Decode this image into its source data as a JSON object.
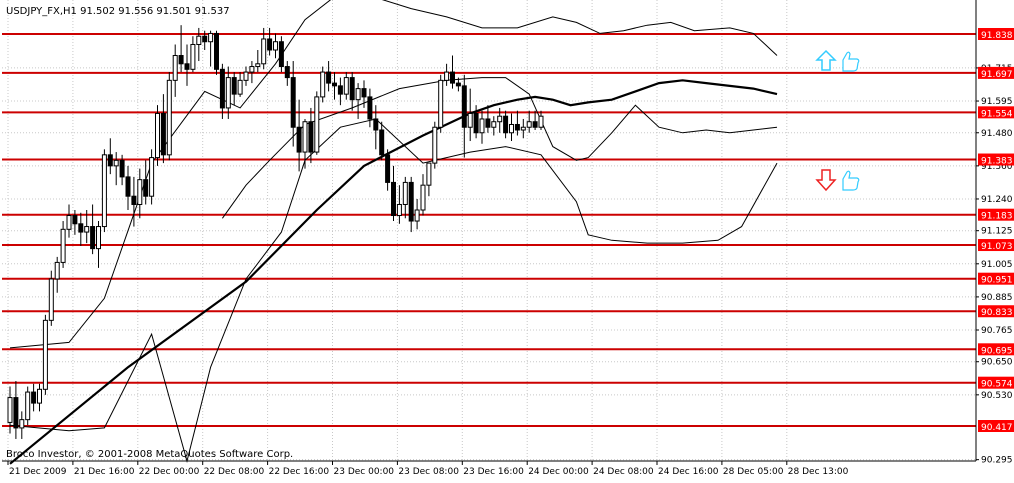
{
  "header": {
    "symbol_text": "USDJPY_FX,H1  91.502 91.556 91.501 91.537"
  },
  "footer": {
    "copyright": "Broco Investor, © 2001-2008 MetaQuotes Software Corp."
  },
  "colors": {
    "background": "#ffffff",
    "grid": "#c8c8c8",
    "level_line": "#cc0000",
    "level_tag_bg": "#ff0000",
    "level_tag_text": "#ffffff",
    "candle": "#000000",
    "bands": "#000000",
    "moving_average": "#000000",
    "up_arrow": "#33ccff",
    "down_arrow": "#ee2222",
    "thumb": "#33ccff"
  },
  "icons": {
    "up_signal": "up-arrow-icon",
    "down_signal": "down-arrow-icon",
    "thumb": "thumb-up-icon"
  },
  "chart_data": {
    "type": "candlestick",
    "symbol": "USDJPY_FX",
    "timeframe": "H1",
    "last_quote": {
      "open": 91.502,
      "high": 91.556,
      "low": 91.501,
      "close": 91.537
    },
    "ylim": [
      90.295,
      91.94
    ],
    "grid": true,
    "y_ticks": [
      "91.715",
      "91.595",
      "91.480",
      "91.360",
      "91.240",
      "91.125",
      "91.005",
      "90.885",
      "90.765",
      "90.650",
      "90.530",
      "90.295"
    ],
    "x_ticks": [
      "21 Dec 2009",
      "21 Dec 16:00",
      "22 Dec 00:00",
      "22 Dec 08:00",
      "22 Dec 16:00",
      "23 Dec 00:00",
      "23 Dec 08:00",
      "23 Dec 16:00",
      "24 Dec 00:00",
      "24 Dec 08:00",
      "24 Dec 16:00",
      "28 Dec 05:00",
      "28 Dec 13:00"
    ],
    "levels": [
      "91.838",
      "91.697",
      "91.554",
      "91.383",
      "91.183",
      "91.073",
      "90.951",
      "90.833",
      "90.695",
      "90.574",
      "90.417"
    ],
    "candles": [
      [
        90.43,
        90.56,
        90.39,
        90.52
      ],
      [
        90.52,
        90.58,
        90.37,
        90.41
      ],
      [
        90.41,
        90.47,
        90.37,
        90.44
      ],
      [
        90.44,
        90.56,
        90.42,
        90.54
      ],
      [
        90.54,
        90.57,
        90.47,
        90.5
      ],
      [
        90.5,
        90.57,
        90.47,
        90.55
      ],
      [
        90.55,
        90.82,
        90.53,
        90.8
      ],
      [
        90.8,
        90.98,
        90.78,
        90.95
      ],
      [
        90.95,
        91.03,
        90.9,
        91.01
      ],
      [
        91.01,
        91.16,
        90.99,
        91.13
      ],
      [
        91.13,
        91.22,
        91.1,
        91.18
      ],
      [
        91.18,
        91.2,
        91.11,
        91.15
      ],
      [
        91.15,
        91.19,
        91.07,
        91.12
      ],
      [
        91.12,
        91.2,
        91.08,
        91.14
      ],
      [
        91.14,
        91.22,
        91.04,
        91.06
      ],
      [
        91.06,
        91.16,
        90.99,
        91.14
      ],
      [
        91.14,
        91.42,
        91.12,
        91.4
      ],
      [
        91.4,
        91.46,
        91.33,
        91.36
      ],
      [
        91.36,
        91.41,
        91.29,
        91.38
      ],
      [
        91.38,
        91.4,
        91.29,
        91.32
      ],
      [
        91.32,
        91.36,
        91.2,
        91.25
      ],
      [
        91.25,
        91.32,
        91.14,
        91.22
      ],
      [
        91.22,
        91.35,
        91.17,
        91.31
      ],
      [
        91.31,
        91.38,
        91.22,
        91.25
      ],
      [
        91.25,
        91.42,
        91.22,
        91.39
      ],
      [
        91.39,
        91.58,
        91.36,
        91.55
      ],
      [
        91.55,
        91.62,
        91.37,
        91.4
      ],
      [
        91.4,
        91.7,
        91.38,
        91.67
      ],
      [
        91.67,
        91.8,
        91.61,
        91.76
      ],
      [
        91.76,
        91.87,
        91.7,
        91.73
      ],
      [
        91.73,
        91.8,
        91.65,
        91.71
      ],
      [
        91.71,
        91.83,
        91.7,
        91.8
      ],
      [
        91.8,
        91.86,
        91.74,
        91.83
      ],
      [
        91.83,
        91.85,
        91.78,
        91.81
      ],
      [
        91.81,
        91.85,
        91.72,
        91.84
      ],
      [
        91.84,
        91.85,
        91.69,
        91.71
      ],
      [
        91.71,
        91.73,
        91.53,
        91.57
      ],
      [
        91.57,
        91.72,
        91.53,
        91.68
      ],
      [
        91.68,
        91.7,
        91.58,
        91.62
      ],
      [
        91.62,
        91.7,
        91.61,
        91.67
      ],
      [
        91.67,
        91.72,
        91.65,
        91.7
      ],
      [
        91.7,
        91.74,
        91.66,
        91.72
      ],
      [
        91.72,
        91.78,
        91.7,
        91.73
      ],
      [
        91.73,
        91.86,
        91.71,
        91.82
      ],
      [
        91.82,
        91.86,
        91.76,
        91.78
      ],
      [
        91.78,
        91.84,
        91.75,
        91.81
      ],
      [
        91.81,
        91.83,
        91.7,
        91.72
      ],
      [
        91.72,
        91.74,
        91.65,
        91.68
      ],
      [
        91.68,
        91.74,
        91.43,
        91.5
      ],
      [
        91.5,
        91.6,
        91.34,
        91.41
      ],
      [
        91.41,
        91.53,
        91.35,
        91.52
      ],
      [
        91.52,
        91.57,
        91.37,
        91.41
      ],
      [
        91.41,
        91.63,
        91.4,
        91.61
      ],
      [
        91.61,
        91.72,
        91.59,
        91.7
      ],
      [
        91.7,
        91.74,
        91.63,
        91.66
      ],
      [
        91.66,
        91.7,
        91.6,
        91.65
      ],
      [
        91.65,
        91.68,
        91.58,
        91.62
      ],
      [
        91.62,
        91.7,
        91.6,
        91.68
      ],
      [
        91.68,
        91.7,
        91.56,
        91.6
      ],
      [
        91.6,
        91.66,
        91.53,
        91.64
      ],
      [
        91.64,
        91.67,
        91.57,
        91.61
      ],
      [
        91.61,
        91.64,
        91.5,
        91.53
      ],
      [
        91.53,
        91.58,
        91.42,
        91.49
      ],
      [
        91.49,
        91.52,
        91.38,
        91.4
      ],
      [
        91.4,
        91.42,
        91.27,
        91.3
      ],
      [
        91.3,
        91.36,
        91.16,
        91.18
      ],
      [
        91.18,
        91.29,
        91.15,
        91.22
      ],
      [
        91.22,
        91.32,
        91.17,
        91.3
      ],
      [
        91.3,
        91.32,
        91.12,
        91.16
      ],
      [
        91.16,
        91.24,
        91.13,
        91.2
      ],
      [
        91.2,
        91.33,
        91.18,
        91.29
      ],
      [
        91.29,
        91.36,
        91.25,
        91.37
      ],
      [
        91.37,
        91.52,
        91.35,
        91.5
      ],
      [
        91.5,
        91.69,
        91.48,
        91.67
      ],
      [
        91.67,
        91.73,
        91.65,
        91.7
      ],
      [
        91.7,
        91.76,
        91.64,
        91.66
      ],
      [
        91.66,
        91.68,
        91.63,
        91.65
      ],
      [
        91.65,
        91.69,
        91.39,
        91.5
      ],
      [
        91.5,
        91.64,
        91.45,
        91.55
      ],
      [
        91.55,
        91.58,
        91.46,
        91.48
      ],
      [
        91.48,
        91.56,
        91.44,
        91.53
      ],
      [
        91.53,
        91.58,
        91.48,
        91.5
      ],
      [
        91.5,
        91.54,
        91.47,
        91.52
      ],
      [
        91.52,
        91.57,
        91.48,
        91.54
      ],
      [
        91.54,
        91.56,
        91.46,
        91.48
      ],
      [
        91.48,
        91.55,
        91.45,
        91.51
      ],
      [
        91.51,
        91.56,
        91.47,
        91.49
      ],
      [
        91.49,
        91.53,
        91.46,
        91.5
      ],
      [
        91.5,
        91.56,
        91.48,
        91.52
      ],
      [
        91.52,
        91.56,
        91.49,
        91.5
      ],
      [
        91.5,
        91.56,
        91.49,
        91.54
      ]
    ],
    "moving_average": [
      [
        0,
        90.28
      ],
      [
        20,
        90.63
      ],
      [
        40,
        90.94
      ],
      [
        52,
        91.2
      ],
      [
        60,
        91.36
      ],
      [
        70,
        91.47
      ],
      [
        78,
        91.55
      ],
      [
        82,
        91.58
      ],
      [
        86,
        91.6
      ],
      [
        89,
        91.61
      ],
      [
        92,
        91.6
      ],
      [
        95,
        91.58
      ],
      [
        98,
        91.59
      ],
      [
        102,
        91.6
      ],
      [
        106,
        91.63
      ],
      [
        110,
        91.66
      ],
      [
        114,
        91.67
      ],
      [
        118,
        91.66
      ],
      [
        122,
        91.65
      ],
      [
        126,
        91.64
      ],
      [
        130,
        91.62
      ]
    ],
    "bollinger_upper": [
      [
        0,
        90.7
      ],
      [
        10,
        90.72
      ],
      [
        16,
        90.88
      ],
      [
        24,
        91.37
      ],
      [
        33,
        91.63
      ],
      [
        39,
        91.57
      ],
      [
        45,
        91.73
      ],
      [
        50,
        91.89
      ],
      [
        56,
        91.99
      ],
      [
        62,
        91.97
      ],
      [
        68,
        91.93
      ],
      [
        74,
        91.9
      ],
      [
        80,
        91.86
      ],
      [
        86,
        91.86
      ],
      [
        92,
        91.9
      ],
      [
        96,
        91.88
      ],
      [
        100,
        91.84
      ],
      [
        104,
        91.85
      ],
      [
        108,
        91.87
      ],
      [
        112,
        91.88
      ],
      [
        116,
        91.85
      ],
      [
        122,
        91.86
      ],
      [
        126,
        91.84
      ],
      [
        130,
        91.76
      ]
    ],
    "bollinger_lower": [
      [
        0,
        90.42
      ],
      [
        10,
        90.4
      ],
      [
        16,
        90.41
      ],
      [
        24,
        90.75
      ],
      [
        30,
        90.29
      ],
      [
        34,
        90.63
      ],
      [
        40,
        90.95
      ],
      [
        46,
        91.12
      ],
      [
        50,
        91.38
      ],
      [
        56,
        91.5
      ],
      [
        62,
        91.53
      ],
      [
        70,
        91.37
      ],
      [
        78,
        91.41
      ],
      [
        84,
        91.43
      ],
      [
        90,
        91.4
      ],
      [
        96,
        91.23
      ],
      [
        98,
        91.11
      ],
      [
        102,
        91.09
      ],
      [
        108,
        91.08
      ],
      [
        114,
        91.08
      ],
      [
        120,
        91.09
      ],
      [
        124,
        91.14
      ],
      [
        130,
        91.37
      ]
    ],
    "bollinger_middle": [
      [
        36,
        91.17
      ],
      [
        40,
        91.29
      ],
      [
        44,
        91.38
      ],
      [
        50,
        91.51
      ],
      [
        58,
        91.57
      ],
      [
        66,
        91.64
      ],
      [
        74,
        91.67
      ],
      [
        80,
        91.68
      ],
      [
        84,
        91.68
      ],
      [
        88,
        91.62
      ],
      [
        92,
        91.43
      ],
      [
        96,
        91.38
      ],
      [
        98,
        91.39
      ],
      [
        102,
        91.48
      ],
      [
        106,
        91.58
      ],
      [
        110,
        91.5
      ],
      [
        114,
        91.48
      ],
      [
        118,
        91.49
      ],
      [
        122,
        91.48
      ],
      [
        126,
        91.49
      ],
      [
        130,
        91.5
      ]
    ]
  }
}
